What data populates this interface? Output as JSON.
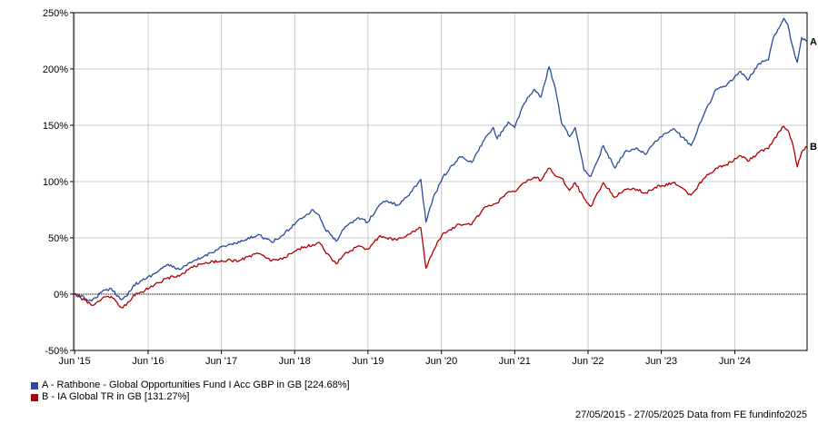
{
  "chart_data": {
    "type": "line",
    "ylim": [
      -50,
      250
    ],
    "y_ticks": [
      "250%",
      "200%",
      "150%",
      "100%",
      "50%",
      "0%",
      "-50%"
    ],
    "y_tick_values": [
      250,
      200,
      150,
      100,
      50,
      0,
      -50
    ],
    "x_range": [
      "2015-05-27",
      "2025-05-27"
    ],
    "x_ticks": [
      "Jun '15",
      "Jun '16",
      "Jun '17",
      "Jun '18",
      "Jun '19",
      "Jun '20",
      "Jun '21",
      "Jun '22",
      "Jun '23",
      "Jun '24"
    ],
    "x_tick_dates": [
      "2015-06-01",
      "2016-06-01",
      "2017-06-01",
      "2018-06-01",
      "2019-06-01",
      "2020-06-01",
      "2021-06-01",
      "2022-06-01",
      "2023-06-01",
      "2024-06-01"
    ],
    "grid": true,
    "series": [
      {
        "name": "A - Rathbone - Global Opportunities Fund I Acc GBP in GB [224.68%]",
        "end_label": "A",
        "color": "#2a4b9b",
        "points": [
          [
            "2015-05-27",
            0
          ],
          [
            "2015-07-01",
            -2
          ],
          [
            "2015-08-25",
            -6
          ],
          [
            "2015-10-15",
            2
          ],
          [
            "2015-12-01",
            5
          ],
          [
            "2016-01-20",
            -5
          ],
          [
            "2016-02-12",
            -2
          ],
          [
            "2016-03-20",
            8
          ],
          [
            "2016-05-01",
            12
          ],
          [
            "2016-07-01",
            18
          ],
          [
            "2016-09-01",
            26
          ],
          [
            "2016-11-10",
            22
          ],
          [
            "2017-01-01",
            28
          ],
          [
            "2017-03-01",
            33
          ],
          [
            "2017-06-01",
            42
          ],
          [
            "2017-09-01",
            46
          ],
          [
            "2017-12-01",
            53
          ],
          [
            "2018-02-08",
            46
          ],
          [
            "2018-04-01",
            52
          ],
          [
            "2018-06-15",
            65
          ],
          [
            "2018-08-31",
            75
          ],
          [
            "2018-10-01",
            70
          ],
          [
            "2018-10-30",
            58
          ],
          [
            "2018-12-24",
            47
          ],
          [
            "2019-02-01",
            58
          ],
          [
            "2019-04-15",
            68
          ],
          [
            "2019-05-31",
            64
          ],
          [
            "2019-07-31",
            80
          ],
          [
            "2019-09-01",
            83
          ],
          [
            "2019-10-25",
            79
          ],
          [
            "2019-12-15",
            87
          ],
          [
            "2020-02-19",
            102
          ],
          [
            "2020-03-16",
            64
          ],
          [
            "2020-04-20",
            85
          ],
          [
            "2020-06-08",
            104
          ],
          [
            "2020-08-31",
            122
          ],
          [
            "2020-10-30",
            117
          ],
          [
            "2020-12-31",
            137
          ],
          [
            "2021-02-15",
            148
          ],
          [
            "2021-03-05",
            138
          ],
          [
            "2021-04-30",
            153
          ],
          [
            "2021-06-01",
            148
          ],
          [
            "2021-07-20",
            170
          ],
          [
            "2021-09-07",
            182
          ],
          [
            "2021-10-10",
            175
          ],
          [
            "2021-11-19",
            202
          ],
          [
            "2021-12-20",
            183
          ],
          [
            "2022-01-20",
            152
          ],
          [
            "2022-03-01",
            140
          ],
          [
            "2022-03-29",
            148
          ],
          [
            "2022-05-12",
            110
          ],
          [
            "2022-06-16",
            105
          ],
          [
            "2022-08-16",
            132
          ],
          [
            "2022-10-12",
            112
          ],
          [
            "2022-11-30",
            126
          ],
          [
            "2023-01-31",
            130
          ],
          [
            "2023-03-15",
            124
          ],
          [
            "2023-05-01",
            136
          ],
          [
            "2023-07-31",
            147
          ],
          [
            "2023-10-27",
            132
          ],
          [
            "2023-12-31",
            160
          ],
          [
            "2024-02-29",
            182
          ],
          [
            "2024-04-19",
            185
          ],
          [
            "2024-06-30",
            198
          ],
          [
            "2024-08-05",
            190
          ],
          [
            "2024-09-30",
            205
          ],
          [
            "2024-11-15",
            208
          ],
          [
            "2024-12-10",
            228
          ],
          [
            "2025-01-31",
            245
          ],
          [
            "2025-02-19",
            240
          ],
          [
            "2025-03-13",
            222
          ],
          [
            "2025-04-08",
            206
          ],
          [
            "2025-04-30",
            228
          ],
          [
            "2025-05-27",
            224.68
          ]
        ]
      },
      {
        "name": "B - IA Global TR in GB [131.27%]",
        "end_label": "B",
        "color": "#b00000",
        "points": [
          [
            "2015-05-27",
            0
          ],
          [
            "2015-07-01",
            -3
          ],
          [
            "2015-08-25",
            -10
          ],
          [
            "2015-10-15",
            -4
          ],
          [
            "2015-12-01",
            -2
          ],
          [
            "2016-01-20",
            -12
          ],
          [
            "2016-02-12",
            -10
          ],
          [
            "2016-03-20",
            -1
          ],
          [
            "2016-05-01",
            2
          ],
          [
            "2016-07-01",
            8
          ],
          [
            "2016-09-01",
            14
          ],
          [
            "2016-11-10",
            17
          ],
          [
            "2017-01-01",
            24
          ],
          [
            "2017-03-01",
            27
          ],
          [
            "2017-06-01",
            30
          ],
          [
            "2017-09-01",
            30
          ],
          [
            "2017-12-01",
            36
          ],
          [
            "2018-02-08",
            30
          ],
          [
            "2018-04-01",
            31
          ],
          [
            "2018-06-15",
            40
          ],
          [
            "2018-08-31",
            44
          ],
          [
            "2018-10-01",
            46
          ],
          [
            "2018-10-30",
            38
          ],
          [
            "2018-12-24",
            27
          ],
          [
            "2019-02-01",
            35
          ],
          [
            "2019-04-15",
            43
          ],
          [
            "2019-05-31",
            40
          ],
          [
            "2019-07-31",
            52
          ],
          [
            "2019-09-01",
            50
          ],
          [
            "2019-10-25",
            48
          ],
          [
            "2019-12-15",
            53
          ],
          [
            "2020-02-19",
            59
          ],
          [
            "2020-03-16",
            23
          ],
          [
            "2020-04-20",
            38
          ],
          [
            "2020-06-08",
            54
          ],
          [
            "2020-08-31",
            62
          ],
          [
            "2020-10-30",
            62
          ],
          [
            "2020-12-31",
            77
          ],
          [
            "2021-02-15",
            80
          ],
          [
            "2021-03-05",
            81
          ],
          [
            "2021-04-30",
            91
          ],
          [
            "2021-06-01",
            91
          ],
          [
            "2021-07-20",
            99
          ],
          [
            "2021-09-07",
            104
          ],
          [
            "2021-10-10",
            101
          ],
          [
            "2021-11-19",
            112
          ],
          [
            "2021-12-20",
            105
          ],
          [
            "2022-01-20",
            103
          ],
          [
            "2022-03-01",
            92
          ],
          [
            "2022-03-29",
            99
          ],
          [
            "2022-05-12",
            85
          ],
          [
            "2022-06-16",
            78
          ],
          [
            "2022-08-16",
            99
          ],
          [
            "2022-10-12",
            86
          ],
          [
            "2022-11-30",
            93
          ],
          [
            "2023-01-31",
            93
          ],
          [
            "2023-03-15",
            90
          ],
          [
            "2023-05-01",
            95
          ],
          [
            "2023-07-31",
            99
          ],
          [
            "2023-10-27",
            88
          ],
          [
            "2023-12-31",
            103
          ],
          [
            "2024-02-29",
            112
          ],
          [
            "2024-04-19",
            115
          ],
          [
            "2024-06-30",
            123
          ],
          [
            "2024-08-05",
            118
          ],
          [
            "2024-09-30",
            126
          ],
          [
            "2024-11-15",
            129
          ],
          [
            "2024-12-10",
            137
          ],
          [
            "2025-01-31",
            149
          ],
          [
            "2025-02-19",
            146
          ],
          [
            "2025-03-13",
            136
          ],
          [
            "2025-04-08",
            113
          ],
          [
            "2025-04-30",
            126
          ],
          [
            "2025-05-27",
            131.27
          ]
        ]
      }
    ]
  },
  "footer": {
    "date_range": "27/05/2015 - 27/05/2025",
    "source": "Data from FE fundinfo2025"
  }
}
